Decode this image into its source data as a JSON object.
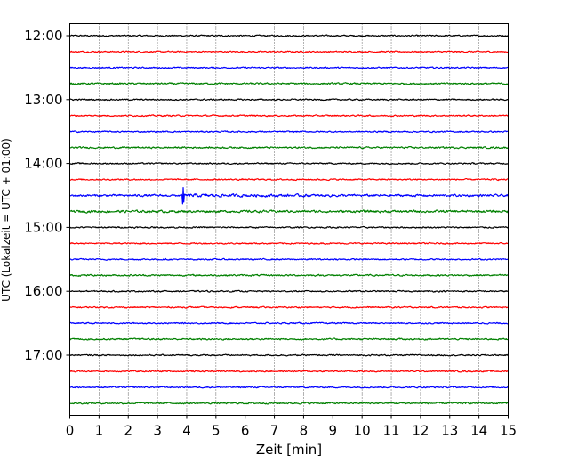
{
  "chart_data": {
    "type": "line",
    "title": "",
    "xlabel": "Zeit  [min]",
    "ylabel": "UTC (Lokalzeit = UTC + 01:00)",
    "xlim": [
      0,
      15
    ],
    "x_ticks": [
      "0",
      "1",
      "2",
      "3",
      "4",
      "5",
      "6",
      "7",
      "8",
      "9",
      "10",
      "11",
      "12",
      "13",
      "14",
      "15"
    ],
    "y_tick_labels": [
      "12:00",
      "13:00",
      "14:00",
      "15:00",
      "16:00",
      "17:00"
    ],
    "grid": "vertical dotted lines at each minute",
    "legend": "none",
    "trace_colors": [
      "#000000",
      "#ff0000",
      "#0000ff",
      "#008000"
    ],
    "series": [
      {
        "start": "12:00",
        "color": "#000000",
        "amplitude": 0.12
      },
      {
        "start": "12:15",
        "color": "#ff0000",
        "amplitude": 0.12
      },
      {
        "start": "12:30",
        "color": "#0000ff",
        "amplitude": 0.12
      },
      {
        "start": "12:45",
        "color": "#008000",
        "amplitude": 0.14
      },
      {
        "start": "13:00",
        "color": "#000000",
        "amplitude": 0.12
      },
      {
        "start": "13:15",
        "color": "#ff0000",
        "amplitude": 0.12
      },
      {
        "start": "13:30",
        "color": "#0000ff",
        "amplitude": 0.12
      },
      {
        "start": "13:45",
        "color": "#008000",
        "amplitude": 0.14
      },
      {
        "start": "14:00",
        "color": "#000000",
        "amplitude": 0.12
      },
      {
        "start": "14:15",
        "color": "#ff0000",
        "amplitude": 0.12
      },
      {
        "start": "14:30",
        "color": "#0000ff",
        "amplitude": 0.18,
        "event": {
          "t_min": 3.85,
          "peak": 0.9
        }
      },
      {
        "start": "14:45",
        "color": "#008000",
        "amplitude": 0.2
      },
      {
        "start": "15:00",
        "color": "#000000",
        "amplitude": 0.12
      },
      {
        "start": "15:15",
        "color": "#ff0000",
        "amplitude": 0.12
      },
      {
        "start": "15:30",
        "color": "#0000ff",
        "amplitude": 0.12
      },
      {
        "start": "15:45",
        "color": "#008000",
        "amplitude": 0.14
      },
      {
        "start": "16:00",
        "color": "#000000",
        "amplitude": 0.12
      },
      {
        "start": "16:15",
        "color": "#ff0000",
        "amplitude": 0.12
      },
      {
        "start": "16:30",
        "color": "#0000ff",
        "amplitude": 0.12
      },
      {
        "start": "16:45",
        "color": "#008000",
        "amplitude": 0.14
      },
      {
        "start": "17:00",
        "color": "#000000",
        "amplitude": 0.12
      },
      {
        "start": "17:15",
        "color": "#ff0000",
        "amplitude": 0.12
      },
      {
        "start": "17:30",
        "color": "#0000ff",
        "amplitude": 0.12
      },
      {
        "start": "17:45",
        "color": "#008000",
        "amplitude": 0.14
      }
    ]
  }
}
